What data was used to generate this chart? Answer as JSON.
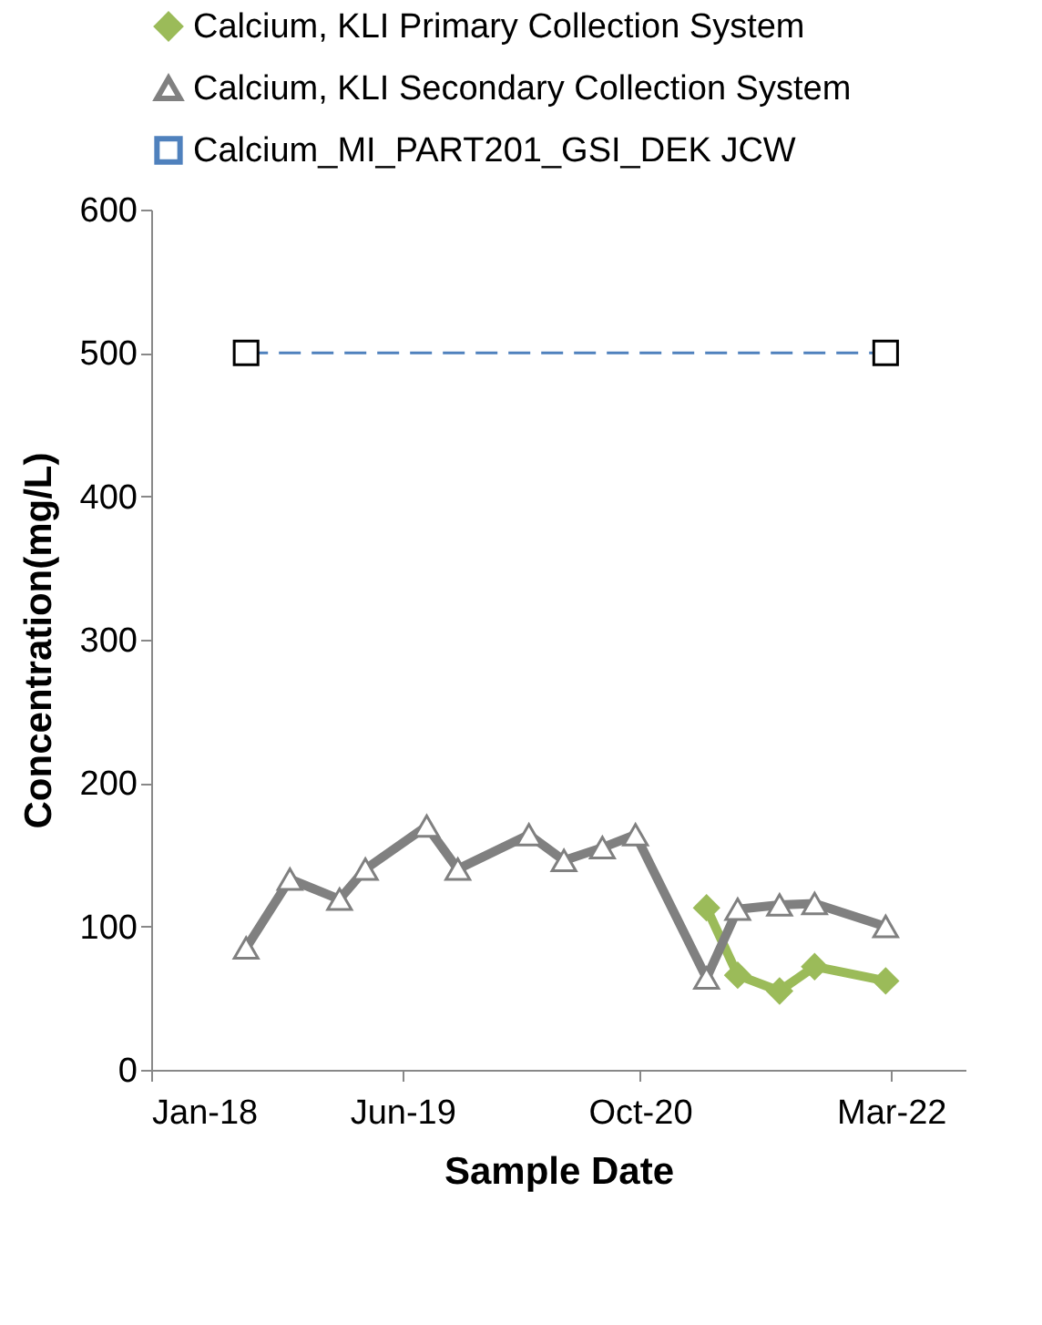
{
  "chart_data": {
    "type": "line",
    "xlabel": "Sample Date",
    "ylabel": "Concentration(mg/L)",
    "xlim": [
      "2018-01-01",
      "2022-08-01"
    ],
    "xticks": [
      {
        "value": "2018-01-01",
        "label": "Jan-18"
      },
      {
        "value": "2019-06-01",
        "label": "Jun-19"
      },
      {
        "value": "2020-10-01",
        "label": "Oct-20"
      },
      {
        "value": "2022-03-01",
        "label": "Mar-22"
      }
    ],
    "ylim": [
      0,
      600
    ],
    "yticks": [
      0,
      100,
      200,
      300,
      400,
      500,
      600
    ],
    "grid": false,
    "legend": "top",
    "series": [
      {
        "name": "Calcium, KLI Primary Collection System",
        "color": "#9bbb59",
        "marker": "diamond",
        "line_style": "solid",
        "x": [
          "2021-02-15",
          "2021-04-20",
          "2021-07-15",
          "2021-09-25",
          "2022-02-18"
        ],
        "values": [
          113,
          66,
          55,
          72,
          62
        ]
      },
      {
        "name": "Calcium, KLI Secondary Collection System",
        "color": "#808080",
        "marker": "triangle",
        "line_style": "solid",
        "x": [
          "2018-07-15",
          "2018-10-13",
          "2019-01-23",
          "2019-03-17",
          "2019-07-21",
          "2019-09-23",
          "2020-02-16",
          "2020-04-28",
          "2020-07-16",
          "2020-09-22",
          "2021-02-15",
          "2021-04-20",
          "2021-07-15",
          "2021-09-25",
          "2022-02-18"
        ],
        "values": [
          85,
          133,
          119,
          140,
          170,
          140,
          164,
          146,
          155,
          164,
          64,
          112,
          115,
          116,
          100
        ]
      },
      {
        "name": "Calcium_MI_PART201_GSI_DEK JCW",
        "color": "#4f81bd",
        "marker": "square",
        "line_style": "dashed",
        "x": [
          "2018-07-15",
          "2022-02-18"
        ],
        "values": [
          500,
          500
        ]
      }
    ]
  }
}
